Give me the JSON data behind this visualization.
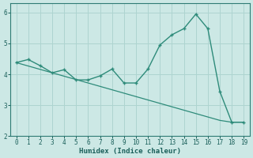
{
  "x": [
    0,
    1,
    2,
    3,
    4,
    5,
    6,
    7,
    8,
    9,
    10,
    11,
    12,
    13,
    14,
    15,
    16,
    17,
    18,
    19
  ],
  "y_main": [
    4.38,
    4.48,
    4.28,
    4.05,
    4.15,
    3.82,
    3.82,
    3.95,
    4.17,
    3.72,
    3.72,
    4.17,
    4.95,
    5.28,
    5.48,
    5.95,
    5.48,
    3.45,
    2.45,
    2.45
  ],
  "y_trend": [
    4.38,
    4.27,
    4.16,
    4.05,
    3.94,
    3.83,
    3.72,
    3.61,
    3.5,
    3.39,
    3.28,
    3.17,
    3.06,
    2.95,
    2.84,
    2.73,
    2.62,
    2.51,
    2.45,
    2.45
  ],
  "line_color": "#2e8b7a",
  "bg_color": "#cce8e5",
  "grid_color": "#aed4d0",
  "xlabel": "Humidex (Indice chaleur)",
  "xlim": [
    -0.5,
    19.5
  ],
  "ylim": [
    2.0,
    6.3
  ],
  "yticks": [
    2,
    3,
    4,
    5,
    6
  ],
  "xticks": [
    0,
    1,
    2,
    3,
    4,
    5,
    6,
    7,
    8,
    9,
    10,
    11,
    12,
    13,
    14,
    15,
    16,
    17,
    18,
    19
  ]
}
